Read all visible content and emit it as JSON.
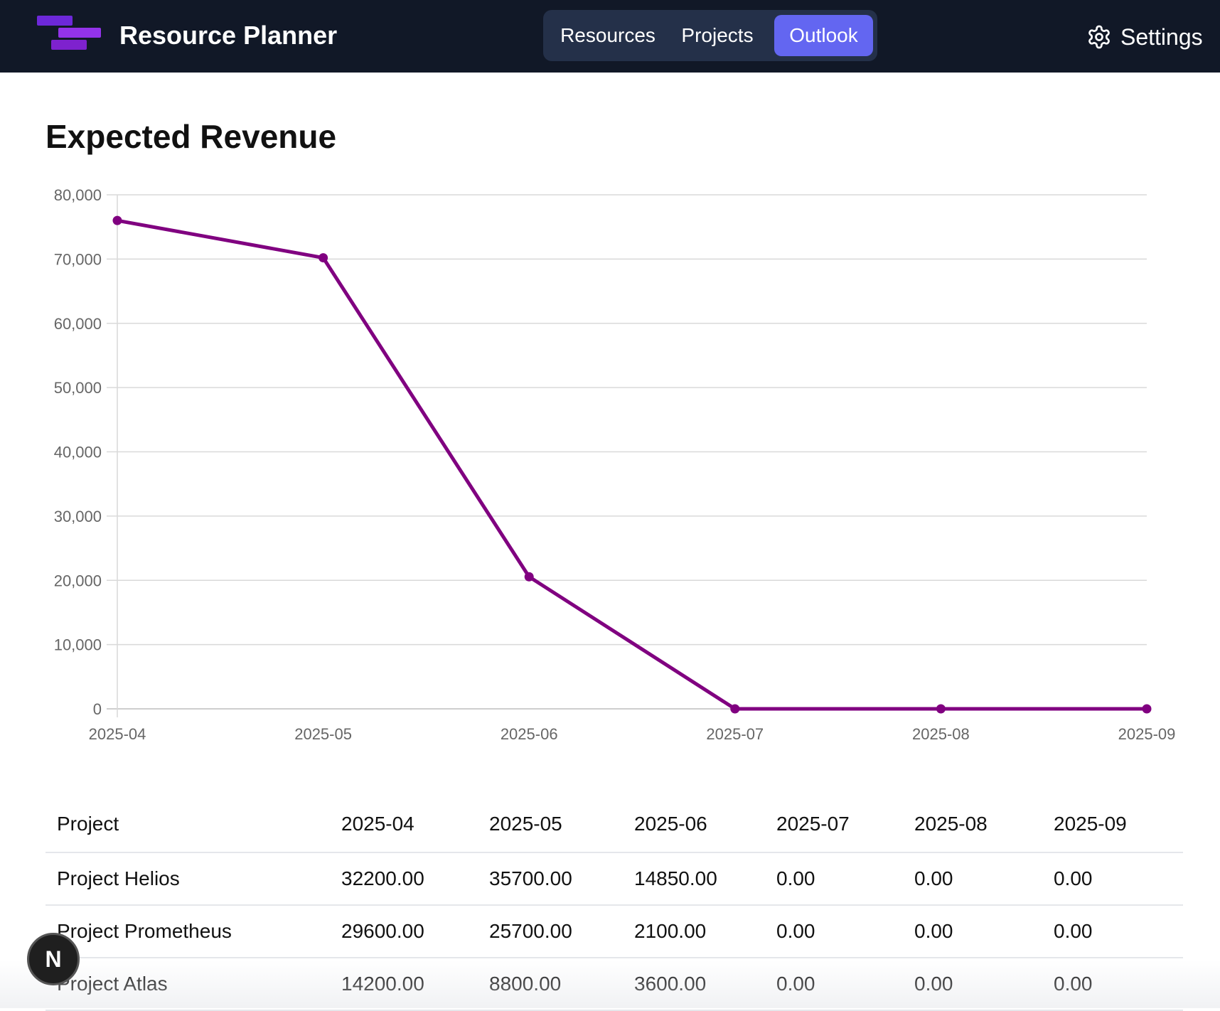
{
  "app": {
    "title": "Resource Planner",
    "logo_icon": "app-logo-bars"
  },
  "nav": {
    "tabs": [
      {
        "label": "Resources",
        "active": false
      },
      {
        "label": "Projects",
        "active": false
      },
      {
        "label": "Outlook",
        "active": true
      }
    ],
    "settings_label": "Settings",
    "settings_icon": "gear-icon"
  },
  "page": {
    "heading": "Expected Revenue"
  },
  "colors": {
    "navbar_bg": "#111827",
    "tab_active_bg": "#6366f1",
    "line": "#800080",
    "grid": "#d9d9d9"
  },
  "chart_data": {
    "type": "line",
    "title": "",
    "xlabel": "",
    "ylabel": "",
    "categories": [
      "2025-04",
      "2025-05",
      "2025-06",
      "2025-07",
      "2025-08",
      "2025-09"
    ],
    "series": [
      {
        "values": [
          76000,
          70200,
          20550,
          0,
          0,
          0
        ]
      }
    ],
    "yticks": [
      "0",
      "10,000",
      "20,000",
      "30,000",
      "40,000",
      "50,000",
      "60,000",
      "70,000",
      "80,000"
    ],
    "ylim": [
      0,
      80000
    ],
    "grid": true,
    "legend": "none"
  },
  "table": {
    "headers": [
      "Project",
      "2025-04",
      "2025-05",
      "2025-06",
      "2025-07",
      "2025-08",
      "2025-09"
    ],
    "rows": [
      [
        "Project Helios",
        "32200.00",
        "35700.00",
        "14850.00",
        "0.00",
        "0.00",
        "0.00"
      ],
      [
        "Project Prometheus",
        "29600.00",
        "25700.00",
        "2100.00",
        "0.00",
        "0.00",
        "0.00"
      ],
      [
        "Project Atlas",
        "14200.00",
        "8800.00",
        "3600.00",
        "0.00",
        "0.00",
        "0.00"
      ]
    ]
  },
  "dev_badge": {
    "letter": "N"
  }
}
